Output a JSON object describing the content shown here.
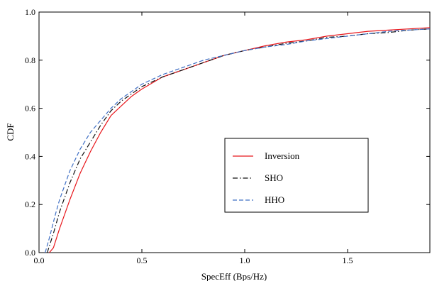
{
  "chart_data": {
    "type": "line",
    "title": "",
    "xlabel": "SpecEff (Bps/Hz)",
    "ylabel": "CDF",
    "xlim": [
      0,
      1.9
    ],
    "ylim": [
      0,
      1.0
    ],
    "xticks": [
      0.0,
      0.5,
      1.0,
      1.5
    ],
    "xtick_labels": [
      "0.0",
      "0.5",
      "1.0",
      "1.5"
    ],
    "yticks": [
      0.0,
      0.2,
      0.4,
      0.6,
      0.8,
      1.0
    ],
    "ytick_labels": [
      "0.0",
      "0.2",
      "0.4",
      "0.6",
      "0.8",
      "1.0"
    ],
    "grid": false,
    "legend_position": "center-right",
    "series": [
      {
        "name": "Inversion",
        "color": "#e8171c",
        "dash": "solid",
        "x": [
          0.05,
          0.07,
          0.1,
          0.15,
          0.2,
          0.25,
          0.3,
          0.35,
          0.4,
          0.45,
          0.5,
          0.6,
          0.7,
          0.8,
          0.9,
          1.0,
          1.1,
          1.2,
          1.3,
          1.4,
          1.5,
          1.6,
          1.7,
          1.8,
          1.9
        ],
        "y": [
          0.0,
          0.02,
          0.1,
          0.22,
          0.33,
          0.42,
          0.5,
          0.57,
          0.61,
          0.65,
          0.68,
          0.73,
          0.76,
          0.79,
          0.82,
          0.84,
          0.86,
          0.875,
          0.885,
          0.9,
          0.91,
          0.92,
          0.925,
          0.93,
          0.935
        ]
      },
      {
        "name": "SHO",
        "color": "#111111",
        "dash": "dashdot",
        "x": [
          0.04,
          0.07,
          0.1,
          0.15,
          0.2,
          0.25,
          0.3,
          0.35,
          0.4,
          0.45,
          0.5,
          0.6,
          0.7,
          0.8,
          0.9,
          1.0,
          1.1,
          1.2,
          1.3,
          1.4,
          1.5,
          1.6,
          1.7,
          1.8,
          1.9
        ],
        "y": [
          0.0,
          0.08,
          0.17,
          0.29,
          0.39,
          0.46,
          0.53,
          0.59,
          0.63,
          0.66,
          0.69,
          0.73,
          0.76,
          0.79,
          0.82,
          0.84,
          0.855,
          0.87,
          0.88,
          0.895,
          0.9,
          0.91,
          0.915,
          0.925,
          0.93
        ]
      },
      {
        "name": "HHO",
        "color": "#3f6fc4",
        "dash": "dashed",
        "x": [
          0.03,
          0.05,
          0.08,
          0.1,
          0.15,
          0.2,
          0.25,
          0.3,
          0.35,
          0.4,
          0.45,
          0.5,
          0.6,
          0.7,
          0.8,
          0.9,
          1.0,
          1.1,
          1.2,
          1.3,
          1.4,
          1.5,
          1.6,
          1.7,
          1.8,
          1.9
        ],
        "y": [
          0.0,
          0.06,
          0.16,
          0.22,
          0.34,
          0.43,
          0.5,
          0.55,
          0.6,
          0.64,
          0.67,
          0.7,
          0.74,
          0.77,
          0.8,
          0.82,
          0.84,
          0.855,
          0.865,
          0.88,
          0.89,
          0.9,
          0.91,
          0.92,
          0.925,
          0.93
        ]
      }
    ]
  }
}
